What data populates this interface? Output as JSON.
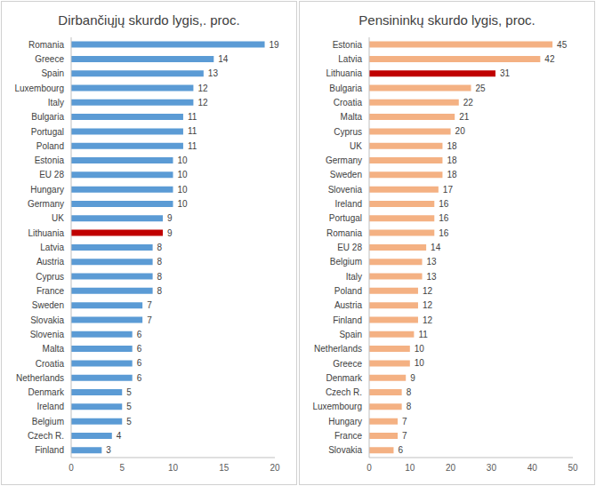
{
  "chart_data": [
    {
      "type": "bar",
      "title": "Dirbančiųjų skurdo lygis,. proc.",
      "orientation": "horizontal",
      "data_labels": true,
      "grid": false,
      "categories": [
        "Romania",
        "Greece",
        "Spain",
        "Luxembourg",
        "Italy",
        "Bulgaria",
        "Portugal",
        "Poland",
        "Estonia",
        "EU 28",
        "Hungary",
        "Germany",
        "UK",
        "Lithuania",
        "Latvia",
        "Austria",
        "Cyprus",
        "France",
        "Sweden",
        "Slovakia",
        "Slovenia",
        "Malta",
        "Croatia",
        "Netherlands",
        "Denmark",
        "Ireland",
        "Belgium",
        "Czech R.",
        "Finland"
      ],
      "values": [
        19,
        14,
        13,
        12,
        12,
        11,
        11,
        11,
        10,
        10,
        10,
        10,
        9,
        9,
        8,
        8,
        8,
        8,
        7,
        7,
        6,
        6,
        6,
        6,
        5,
        5,
        5,
        4,
        3
      ],
      "colors": [
        "#5b9bd5",
        "#5b9bd5",
        "#5b9bd5",
        "#5b9bd5",
        "#5b9bd5",
        "#5b9bd5",
        "#5b9bd5",
        "#5b9bd5",
        "#5b9bd5",
        "#5b9bd5",
        "#5b9bd5",
        "#5b9bd5",
        "#5b9bd5",
        "#c00000",
        "#5b9bd5",
        "#5b9bd5",
        "#5b9bd5",
        "#5b9bd5",
        "#5b9bd5",
        "#5b9bd5",
        "#5b9bd5",
        "#5b9bd5",
        "#5b9bd5",
        "#5b9bd5",
        "#5b9bd5",
        "#5b9bd5",
        "#5b9bd5",
        "#5b9bd5",
        "#5b9bd5"
      ],
      "xlim": [
        0,
        20
      ],
      "xticks": [
        0,
        5,
        10,
        15,
        20
      ]
    },
    {
      "type": "bar",
      "title": "Pensininkų skurdo lygis, proc.",
      "orientation": "horizontal",
      "data_labels": true,
      "grid": false,
      "categories": [
        "Estonia",
        "Latvia",
        "Lithuania",
        "Bulgaria",
        "Croatia",
        "Malta",
        "Cyprus",
        "UK",
        "Germany",
        "Sweden",
        "Slovenia",
        "Ireland",
        "Portugal",
        "Romania",
        "EU 28",
        "Belgium",
        "Italy",
        "Poland",
        "Austria",
        "Finland",
        "Spain",
        "Netherlands",
        "Greece",
        "Denmark",
        "Czech R.",
        "Luxembourg",
        "Hungary",
        "France",
        "Slovakia"
      ],
      "values": [
        45,
        42,
        31,
        25,
        22,
        21,
        20,
        18,
        18,
        18,
        17,
        16,
        16,
        16,
        14,
        13,
        13,
        12,
        12,
        12,
        11,
        10,
        10,
        9,
        8,
        8,
        7,
        7,
        6
      ],
      "colors": [
        "#f4b183",
        "#f4b183",
        "#c00000",
        "#f4b183",
        "#f4b183",
        "#f4b183",
        "#f4b183",
        "#f4b183",
        "#f4b183",
        "#f4b183",
        "#f4b183",
        "#f4b183",
        "#f4b183",
        "#f4b183",
        "#f4b183",
        "#f4b183",
        "#f4b183",
        "#f4b183",
        "#f4b183",
        "#f4b183",
        "#f4b183",
        "#f4b183",
        "#f4b183",
        "#f4b183",
        "#f4b183",
        "#f4b183",
        "#f4b183",
        "#f4b183",
        "#f4b183"
      ],
      "xlim": [
        0,
        50
      ],
      "xticks": [
        0,
        10,
        20,
        30,
        40,
        50
      ]
    }
  ]
}
